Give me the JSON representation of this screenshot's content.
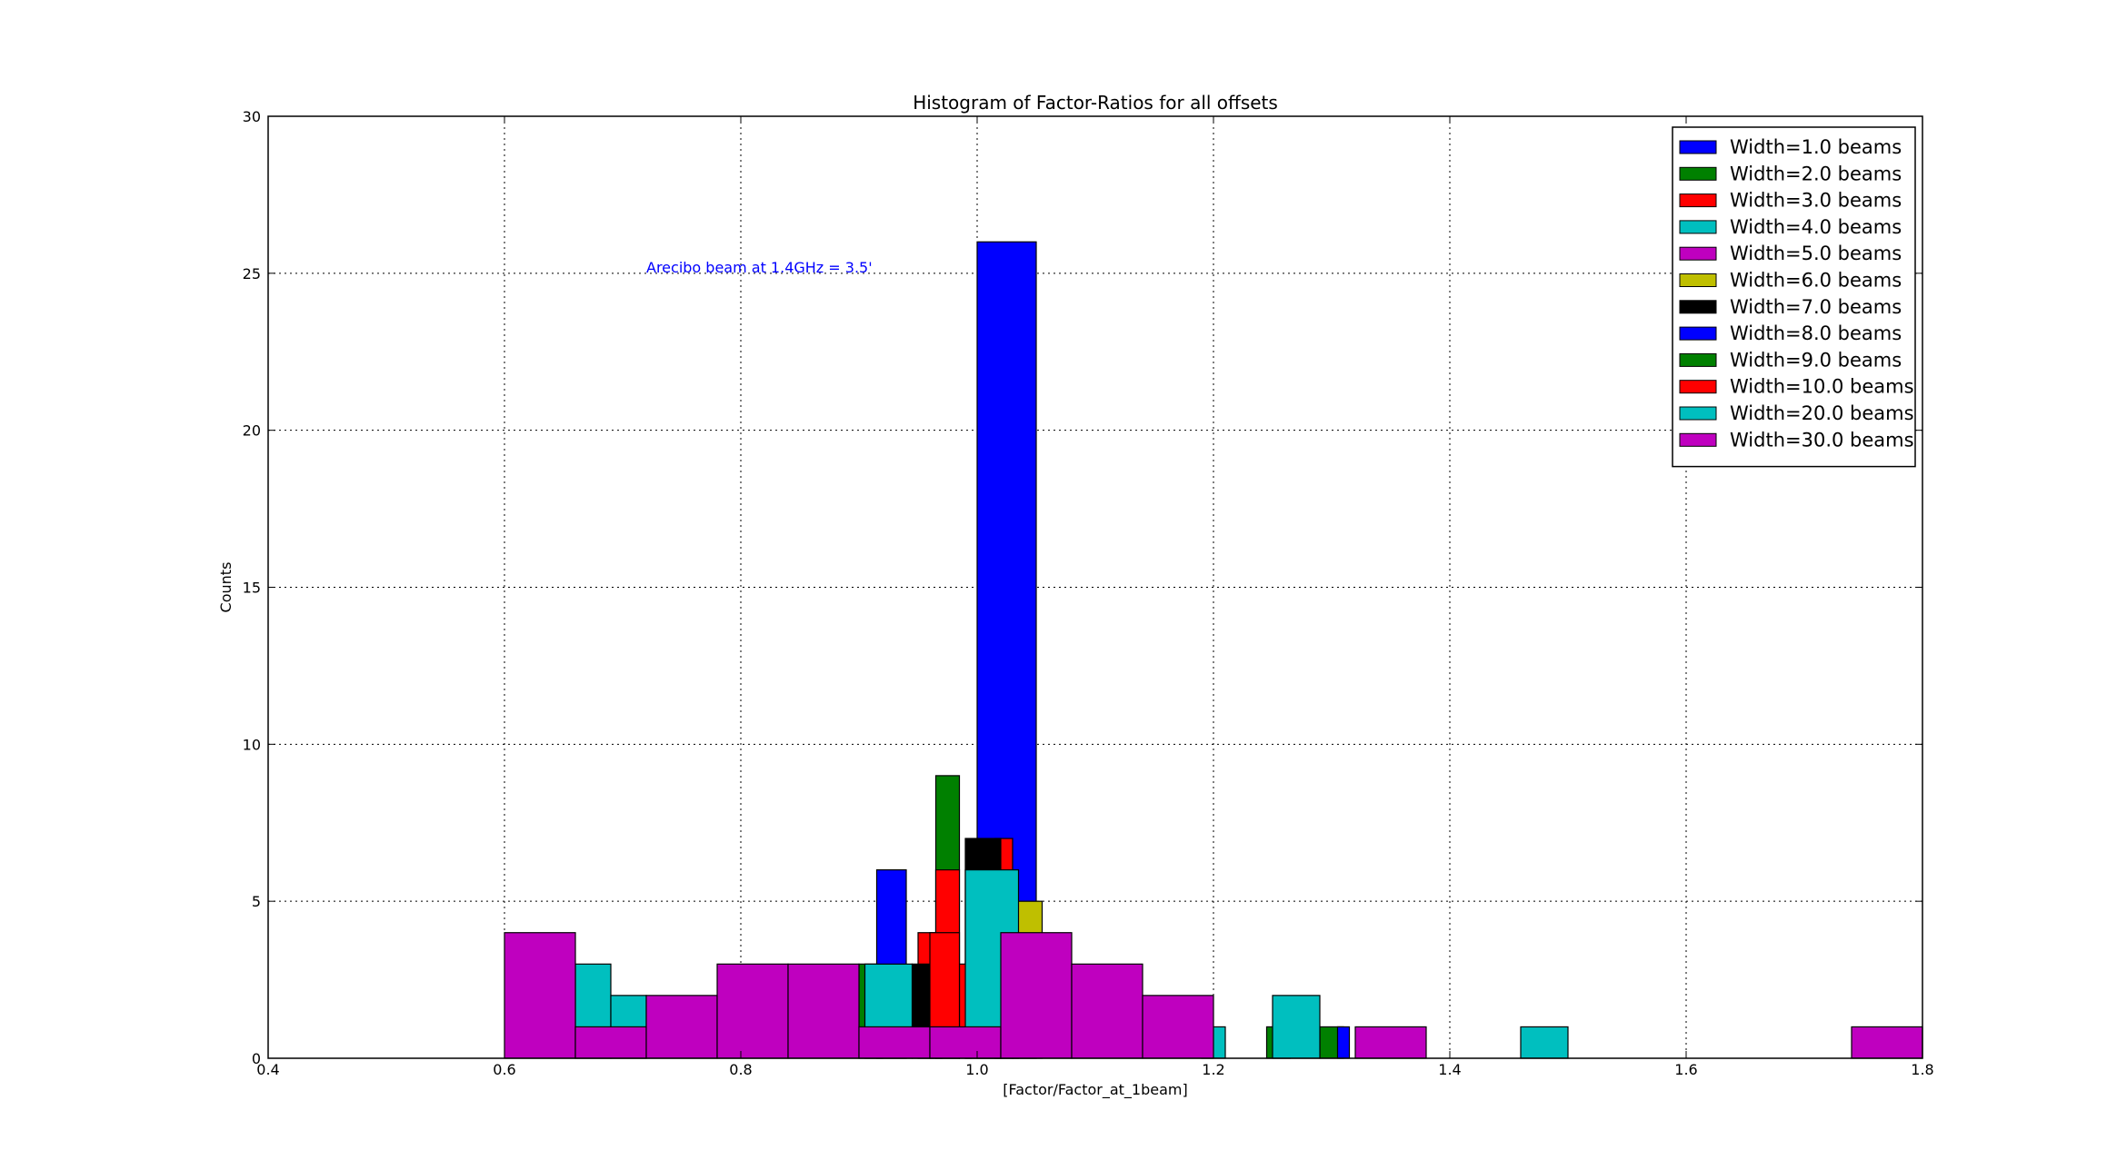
{
  "chart_data": {
    "type": "bar",
    "title": "Histogram of Factor-Ratios for all offsets",
    "xlabel": "[Factor/Factor_at_1beam]",
    "ylabel": "Counts",
    "xlim": [
      0.4,
      1.8
    ],
    "ylim": [
      0,
      30
    ],
    "xticks": [
      "0.4",
      "0.6",
      "0.8",
      "1.0",
      "1.2",
      "1.4",
      "1.6",
      "1.8"
    ],
    "yticks": [
      "0",
      "5",
      "10",
      "15",
      "20",
      "25",
      "30"
    ],
    "grid": true,
    "legend_position": "top-right",
    "annotation": {
      "text": "Arecibo beam at 1.4GHz = 3.5'",
      "x": 0.72,
      "y": 25.2
    },
    "series": [
      {
        "name": "Width=1.0 beams",
        "color": "#0000ff",
        "bars": [
          {
            "x0": 0.5,
            "x1": 0.55,
            "h": 0
          },
          {
            "x0": 1.0,
            "x1": 1.05,
            "h": 26
          }
        ]
      },
      {
        "name": "Width=2.0 beams",
        "color": "#008000",
        "bars": [
          {
            "x0": 0.965,
            "x1": 0.985,
            "h": 9
          },
          {
            "x0": 0.9,
            "x1": 0.92,
            "h": 3
          },
          {
            "x0": 1.245,
            "x1": 1.265,
            "h": 1
          },
          {
            "x0": 1.29,
            "x1": 1.31,
            "h": 1
          }
        ]
      },
      {
        "name": "Width=3.0 beams",
        "color": "#ff0000",
        "bars": [
          {
            "x0": 1.015,
            "x1": 1.03,
            "h": 7
          },
          {
            "x0": 0.95,
            "x1": 0.97,
            "h": 4
          }
        ]
      },
      {
        "name": "Width=4.0 beams",
        "color": "#00bfbf",
        "bars": [
          {
            "x0": 1.19,
            "x1": 1.21,
            "h": 1
          },
          {
            "x0": 0.66,
            "x1": 0.69,
            "h": 3
          }
        ]
      },
      {
        "name": "Width=5.0 beams",
        "color": "#bf00bf",
        "bars": []
      },
      {
        "name": "Width=6.0 beams",
        "color": "#bfbf00",
        "bars": [
          {
            "x0": 1.03,
            "x1": 1.055,
            "h": 5
          }
        ]
      },
      {
        "name": "Width=7.0 beams",
        "color": "#000000",
        "bars": [
          {
            "x0": 0.99,
            "x1": 1.02,
            "h": 7
          },
          {
            "x0": 0.945,
            "x1": 0.965,
            "h": 3
          }
        ]
      },
      {
        "name": "Width=8.0 beams",
        "color": "#0000ff",
        "bars": [
          {
            "x0": 0.915,
            "x1": 0.94,
            "h": 6
          },
          {
            "x0": 1.305,
            "x1": 1.315,
            "h": 1
          }
        ]
      },
      {
        "name": "Width=9.0 beams",
        "color": "#008000",
        "bars": []
      },
      {
        "name": "Width=10.0 beams",
        "color": "#ff0000",
        "bars": [
          {
            "x0": 0.965,
            "x1": 0.985,
            "h": 6
          },
          {
            "x0": 0.985,
            "x1": 0.995,
            "h": 3
          },
          {
            "x0": 0.96,
            "x1": 0.985,
            "h": 4
          }
        ]
      },
      {
        "name": "Width=20.0 beams",
        "color": "#00bfbf",
        "bars": [
          {
            "x0": 0.99,
            "x1": 1.035,
            "h": 6
          },
          {
            "x0": 0.905,
            "x1": 0.945,
            "h": 3
          },
          {
            "x0": 0.69,
            "x1": 0.72,
            "h": 2
          },
          {
            "x0": 1.25,
            "x1": 1.29,
            "h": 2
          },
          {
            "x0": 1.46,
            "x1": 1.5,
            "h": 1
          }
        ]
      },
      {
        "name": "Width=30.0 beams",
        "color": "#bf00bf",
        "bars": [
          {
            "x0": 0.6,
            "x1": 0.66,
            "h": 4
          },
          {
            "x0": 0.66,
            "x1": 0.72,
            "h": 1
          },
          {
            "x0": 0.72,
            "x1": 0.78,
            "h": 2
          },
          {
            "x0": 0.78,
            "x1": 0.84,
            "h": 3
          },
          {
            "x0": 0.84,
            "x1": 0.9,
            "h": 3
          },
          {
            "x0": 0.9,
            "x1": 0.96,
            "h": 1
          },
          {
            "x0": 0.96,
            "x1": 1.02,
            "h": 1
          },
          {
            "x0": 1.02,
            "x1": 1.08,
            "h": 4
          },
          {
            "x0": 1.08,
            "x1": 1.14,
            "h": 3
          },
          {
            "x0": 1.14,
            "x1": 1.2,
            "h": 2
          },
          {
            "x0": 1.2,
            "x1": 1.26,
            "h": 0
          },
          {
            "x0": 1.26,
            "x1": 1.32,
            "h": 0
          },
          {
            "x0": 1.32,
            "x1": 1.38,
            "h": 1
          },
          {
            "x0": 1.38,
            "x1": 1.44,
            "h": 0
          },
          {
            "x0": 1.44,
            "x1": 1.5,
            "h": 0
          },
          {
            "x0": 1.5,
            "x1": 1.56,
            "h": 0
          },
          {
            "x0": 1.56,
            "x1": 1.62,
            "h": 0
          },
          {
            "x0": 1.62,
            "x1": 1.68,
            "h": 0
          },
          {
            "x0": 1.68,
            "x1": 1.74,
            "h": 0
          },
          {
            "x0": 1.74,
            "x1": 1.8,
            "h": 1
          }
        ]
      }
    ]
  }
}
